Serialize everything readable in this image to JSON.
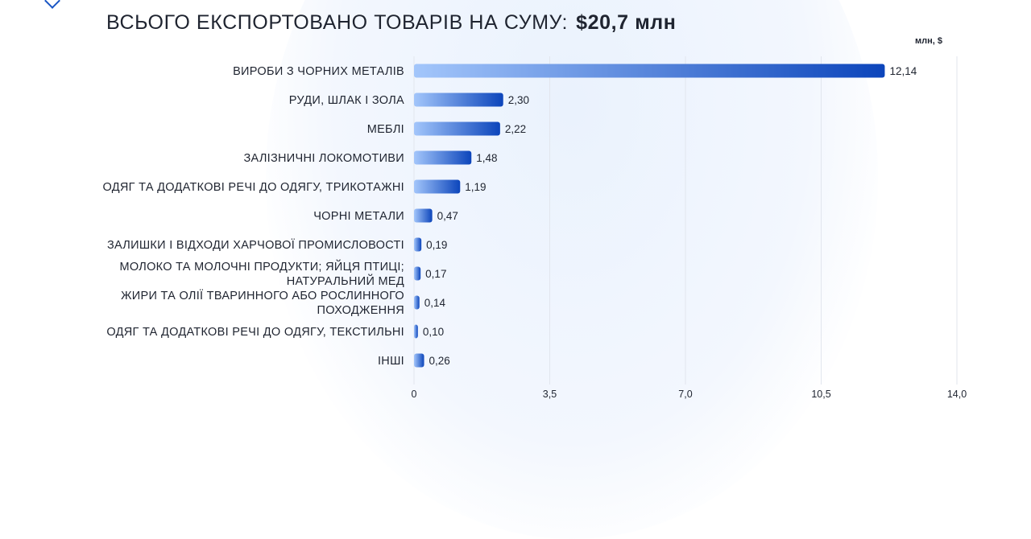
{
  "header": {
    "title": "ВСЬОГО ЕКСПОРТОВАНО ТОВАРІВ НА СУМУ:",
    "total": "$20,7 млн",
    "unit": "млн, $"
  },
  "colors": {
    "bar_start": "#a3c6fb",
    "bar_end": "#0c45bb",
    "grid": "#e2e6ee",
    "background_glow": "#eaf2fd"
  },
  "chart_data": {
    "type": "bar",
    "orientation": "horizontal",
    "title": "ВСЬОГО ЕКСПОРТОВАНО ТОВАРІВ НА СУМУ: $20,7 млн",
    "xlabel": "",
    "ylabel": "",
    "unit": "млн, $",
    "xlim": [
      0,
      14
    ],
    "x_ticks": [
      "0",
      "3,5",
      "7,0",
      "10,5",
      "14,0"
    ],
    "x_tick_values": [
      0,
      3.5,
      7,
      10.5,
      14
    ],
    "grid": true,
    "legend": "none",
    "categories": [
      [
        "ВИРОБИ З ЧОРНИХ МЕТАЛІВ"
      ],
      [
        "РУДИ, ШЛАК І ЗОЛА"
      ],
      [
        "МЕБЛІ"
      ],
      [
        "ЗАЛІЗНИЧНІ ЛОКОМОТИВИ"
      ],
      [
        "ОДЯГ ТА ДОДАТКОВІ РЕЧІ ДО ОДЯГУ, ТРИКОТАЖНІ"
      ],
      [
        "ЧОРНІ МЕТАЛИ"
      ],
      [
        "ЗАЛИШКИ І ВІДХОДИ ХАРЧОВОЇ ПРОМИСЛОВОСТІ"
      ],
      [
        "МОЛОКО ТА МОЛОЧНІ ПРОДУКТИ; ЯЙЦЯ ПТИЦІ;",
        "НАТУРАЛЬНИЙ МЕД"
      ],
      [
        "ЖИРИ ТА ОЛІЇ ТВАРИННОГО АБО РОСЛИННОГО",
        "ПОХОДЖЕННЯ"
      ],
      [
        "ОДЯГ ТА ДОДАТКОВІ РЕЧІ ДО ОДЯГУ, ТЕКСТИЛЬНІ"
      ],
      [
        "ІНШІ"
      ]
    ],
    "values": [
      12.14,
      2.3,
      2.22,
      1.48,
      1.19,
      0.47,
      0.19,
      0.17,
      0.14,
      0.1,
      0.26
    ],
    "value_labels": [
      "12,14",
      "2,30",
      "2,22",
      "1,48",
      "1,19",
      "0,47",
      "0,19",
      "0,17",
      "0,14",
      "0,10",
      "0,26"
    ]
  }
}
